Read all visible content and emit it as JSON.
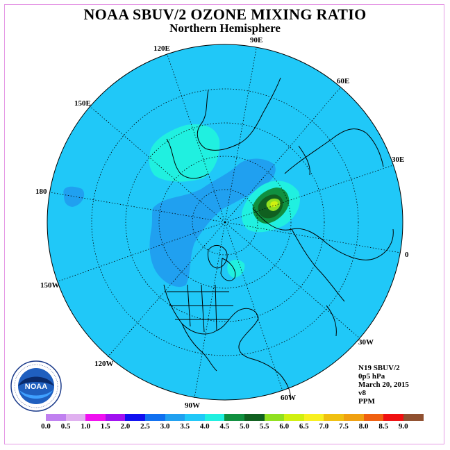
{
  "title": "NOAA SBUV/2 OZONE MIXING RATIO",
  "subtitle": "Northern Hemisphere",
  "longitude_labels": {
    "lon_90e": "90E",
    "lon_60e": "60E",
    "lon_30e": "30E",
    "lon_0": "0",
    "lon_30w": "30W",
    "lon_60w": "60W",
    "lon_90w": "90W",
    "lon_120w": "120W",
    "lon_150w": "150W",
    "lon_180": "180",
    "lon_150e": "150E",
    "lon_120e": "120E"
  },
  "info": {
    "instrument": "N19 SBUV/2",
    "level": "0p5 hPa",
    "date": "March 20, 2015",
    "version": "v8",
    "units": "PPM"
  },
  "logo_text": "NOAA",
  "colorbar": {
    "labels": [
      "0.0",
      "0.5",
      "1.0",
      "1.5",
      "2.0",
      "2.5",
      "3.0",
      "3.5",
      "4.0",
      "4.5",
      "5.0",
      "5.5",
      "6.0",
      "6.5",
      "7.0",
      "7.5",
      "8.0",
      "8.5",
      "9.0"
    ],
    "colors": [
      "#c080f0",
      "#e0b0f0",
      "#f010f0",
      "#a010f0",
      "#1010f0",
      "#1070f0",
      "#20a0f0",
      "#20c8f8",
      "#20f0e0",
      "#109040",
      "#106020",
      "#90e020",
      "#d0f010",
      "#f8f020",
      "#f0c010",
      "#f0a010",
      "#f06010",
      "#f01010",
      "#905030"
    ]
  },
  "colors": {
    "background_field": "#20c8f8",
    "field_2_5_3_0": "#20a0f0",
    "field_3_5_4_0": "#20f0e0",
    "field_4_0_4_5": "#109040",
    "field_4_5_5_0": "#106020",
    "field_5_0_5_5": "#90e020",
    "field_5_5_6_0": "#d0f010",
    "frame_border": "#e59ae5"
  }
}
